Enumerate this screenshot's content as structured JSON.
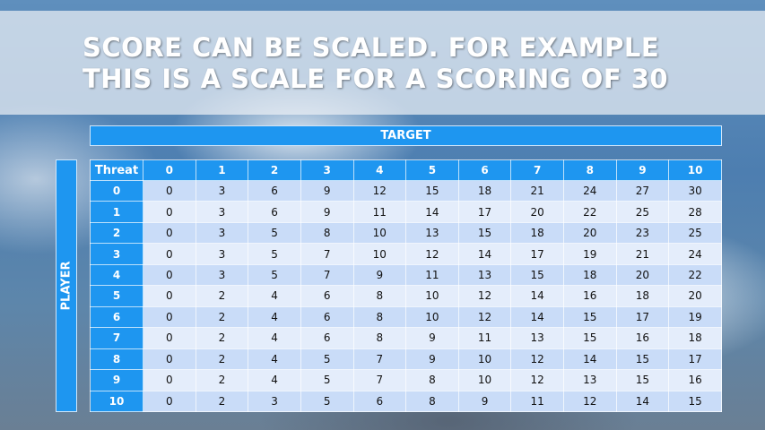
{
  "slide": {
    "title_lines": [
      "SCORE CAN BE SCALED. FOR EXAMPLE",
      "THIS IS A SCALE FOR A SCORING OF 30"
    ],
    "target_label": "TARGET",
    "player_label": "PLAYER"
  },
  "table": {
    "corner_label": "Threat",
    "columns": [
      "0",
      "1",
      "2",
      "3",
      "4",
      "5",
      "6",
      "7",
      "8",
      "9",
      "10"
    ],
    "rows": [
      {
        "label": "0",
        "values": [
          0,
          3,
          6,
          9,
          12,
          15,
          18,
          21,
          24,
          27,
          30
        ]
      },
      {
        "label": "1",
        "values": [
          0,
          3,
          6,
          9,
          11,
          14,
          17,
          20,
          22,
          25,
          28
        ]
      },
      {
        "label": "2",
        "values": [
          0,
          3,
          5,
          8,
          10,
          13,
          15,
          18,
          20,
          23,
          25
        ]
      },
      {
        "label": "3",
        "values": [
          0,
          3,
          5,
          7,
          10,
          12,
          14,
          17,
          19,
          21,
          24
        ]
      },
      {
        "label": "4",
        "values": [
          0,
          3,
          5,
          7,
          9,
          11,
          13,
          15,
          18,
          20,
          22
        ]
      },
      {
        "label": "5",
        "values": [
          0,
          2,
          4,
          6,
          8,
          10,
          12,
          14,
          16,
          18,
          20
        ]
      },
      {
        "label": "6",
        "values": [
          0,
          2,
          4,
          6,
          8,
          10,
          12,
          14,
          15,
          17,
          19
        ]
      },
      {
        "label": "7",
        "values": [
          0,
          2,
          4,
          6,
          8,
          9,
          11,
          13,
          15,
          16,
          18
        ]
      },
      {
        "label": "8",
        "values": [
          0,
          2,
          4,
          5,
          7,
          9,
          10,
          12,
          14,
          15,
          17
        ]
      },
      {
        "label": "9",
        "values": [
          0,
          2,
          4,
          5,
          7,
          8,
          10,
          12,
          13,
          15,
          16
        ]
      },
      {
        "label": "10",
        "values": [
          0,
          2,
          3,
          5,
          6,
          8,
          9,
          11,
          12,
          14,
          15
        ]
      }
    ]
  },
  "colors": {
    "header_blue": "#1e96f0",
    "row_dark": "#c9dcf8",
    "row_light": "#e4edfb"
  }
}
